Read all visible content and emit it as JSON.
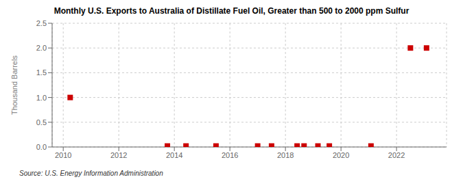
{
  "chart_data": {
    "type": "scatter",
    "title": "Monthly U.S. Exports to Australia of Distillate Fuel Oil, Greater than 500 to 2000 ppm Sulfur",
    "ylabel": "Thousand Barrels",
    "annotation": "Source: U.S. Energy Information Administration",
    "x": [
      2010.25,
      2013.75,
      2014.42,
      2015.5,
      2017.0,
      2017.5,
      2018.42,
      2018.67,
      2019.17,
      2019.58,
      2021.08,
      2022.5,
      2023.08
    ],
    "values": [
      1.0,
      0.02,
      0.02,
      0.02,
      0.02,
      0.02,
      0.02,
      0.02,
      0.02,
      0.02,
      0.02,
      2.0,
      2.0
    ],
    "color": "#cc0000",
    "marker": "square",
    "xlim": [
      2009.6,
      2023.8
    ],
    "xticks": [
      2010,
      2012,
      2014,
      2016,
      2018,
      2020,
      2022
    ],
    "ylim": [
      0.0,
      2.5
    ],
    "yticks": [
      {
        "value": 0.0,
        "label": "0.0"
      },
      0.5,
      {
        "value": 1.0,
        "label": "1.0"
      },
      1.5,
      {
        "value": 2.0,
        "label": "2.0"
      },
      2.5
    ],
    "grid": true
  }
}
